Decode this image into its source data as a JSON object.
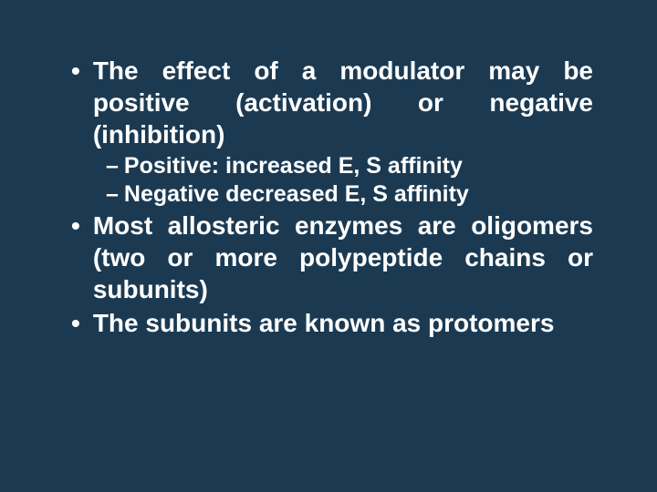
{
  "slide": {
    "background_color": "#1b3a52",
    "text_color": "#ffffff",
    "bullet_fontsize": 28,
    "sub_fontsize": 25,
    "font_weight": "bold",
    "bullets": [
      {
        "text": "The effect of a modulator may be positive (activation) or negative (inhibition)",
        "subs": [
          {
            "text": "Positive: increased E, S affinity"
          },
          {
            "text": "Negative decreased E, S affinity"
          }
        ]
      },
      {
        "text": "Most allosteric enzymes are oligomers (two or more polypeptide chains or subunits)",
        "subs": []
      },
      {
        "text": "The subunits are known as protomers",
        "subs": []
      }
    ]
  }
}
